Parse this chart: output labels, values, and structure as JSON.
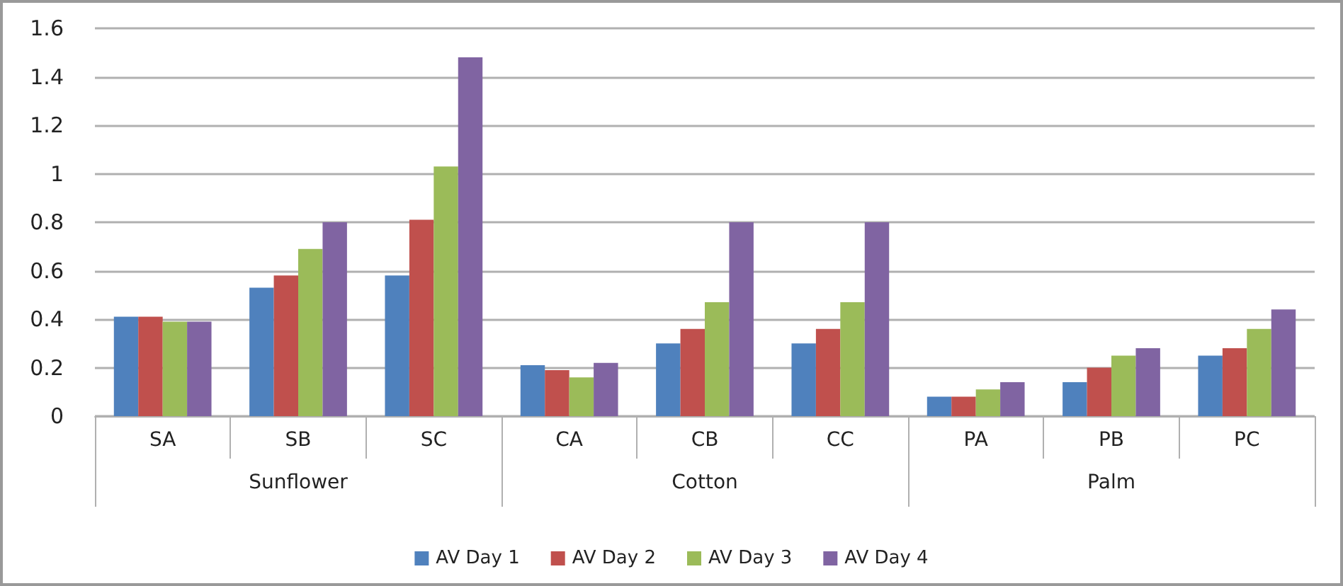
{
  "chart_data": {
    "type": "bar",
    "categories": [
      "SA",
      "SB",
      "SC",
      "CA",
      "CB",
      "CC",
      "PA",
      "PB",
      "PC"
    ],
    "annotations": [
      "Sunflower",
      "Cotton",
      "Palm"
    ],
    "series": [
      {
        "name": "AV Day 1",
        "color": "#4f81bd",
        "values": [
          0.41,
          0.53,
          0.58,
          0.21,
          0.3,
          0.3,
          0.08,
          0.14,
          0.25
        ]
      },
      {
        "name": "AV Day 2",
        "color": "#c0504d",
        "values": [
          0.41,
          0.58,
          0.81,
          0.19,
          0.36,
          0.36,
          0.08,
          0.2,
          0.28
        ]
      },
      {
        "name": "AV Day 3",
        "color": "#9bbb59",
        "values": [
          0.39,
          0.69,
          1.03,
          0.16,
          0.47,
          0.47,
          0.11,
          0.25,
          0.36
        ]
      },
      {
        "name": "AV Day 4",
        "color": "#8064a2",
        "values": [
          0.39,
          0.8,
          1.48,
          0.22,
          0.8,
          0.8,
          0.14,
          0.28,
          0.44
        ]
      }
    ],
    "ylim": [
      0,
      1.6
    ],
    "yticks": [
      0,
      0.2,
      0.4,
      0.6,
      0.8,
      1,
      1.2,
      1.4,
      1.6
    ],
    "grid": "y",
    "legend": "bottom"
  }
}
